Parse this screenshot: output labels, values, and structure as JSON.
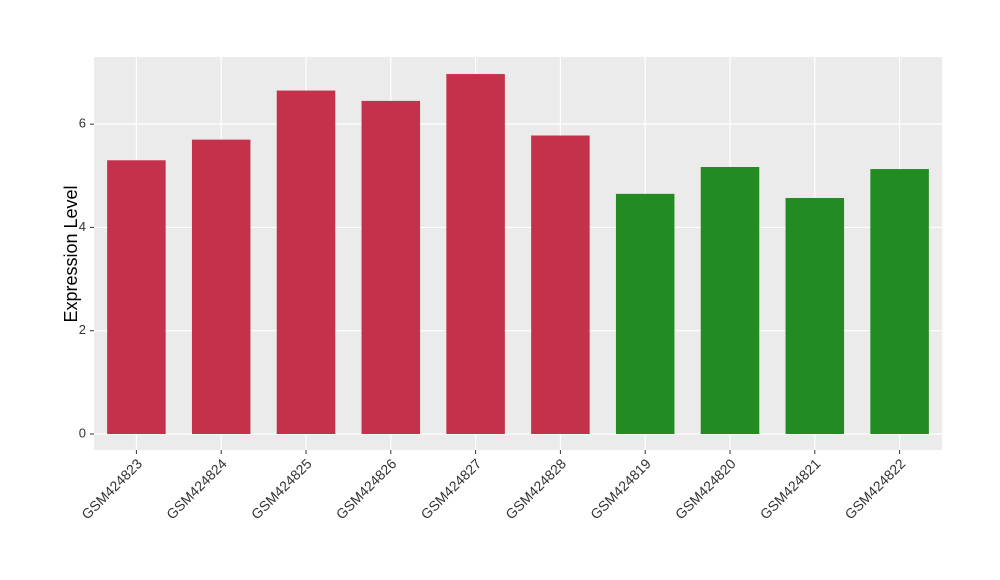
{
  "chart_data": {
    "type": "bar",
    "y_label": "Expression Level",
    "categories": [
      "GSM424823",
      "GSM424824",
      "GSM424825",
      "GSM424826",
      "GSM424827",
      "GSM424828",
      "GSM424819",
      "GSM424820",
      "GSM424821",
      "GSM424822"
    ],
    "values": [
      5.3,
      5.7,
      6.65,
      6.45,
      6.97,
      5.78,
      4.65,
      5.17,
      4.57,
      5.13
    ],
    "colors": [
      "#c4314b",
      "#c4314b",
      "#c4314b",
      "#c4314b",
      "#c4314b",
      "#c4314b",
      "#228b22",
      "#228b22",
      "#228b22",
      "#228b22"
    ],
    "ylim": [
      -0.31,
      7.3
    ],
    "yticks": [
      0,
      2,
      4,
      6
    ],
    "grid": true
  }
}
